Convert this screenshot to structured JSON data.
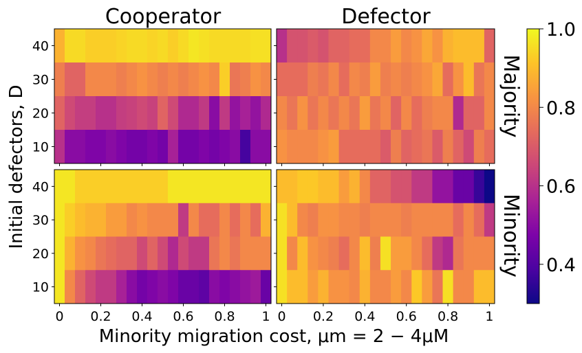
{
  "chart_data": {
    "type": "heatmap",
    "column_titles": [
      "Cooperator",
      "Defector"
    ],
    "row_titles": [
      "Majority",
      "Minority"
    ],
    "ylabel": "Initial defectors, D",
    "xlabel": "Minority migration cost, μm = 2 − 4μM",
    "xlim": [
      0,
      1
    ],
    "x_ticks": [
      "0",
      "0.2",
      "0.4",
      "0.6",
      "0.8",
      "1"
    ],
    "y_ticks": [
      "10",
      "20",
      "30",
      "40"
    ],
    "colormap": "plasma",
    "color_range": [
      0.3,
      1.0
    ],
    "colorbar_ticks": [
      "0.4",
      "0.6",
      "0.8",
      "1.0"
    ],
    "x_values": [
      0,
      0.05,
      0.1,
      0.15,
      0.2,
      0.25,
      0.3,
      0.35,
      0.4,
      0.45,
      0.5,
      0.55,
      0.6,
      0.65,
      0.7,
      0.75,
      0.8,
      0.85,
      0.9,
      0.95,
      1.0
    ],
    "y_values": [
      40,
      30,
      20,
      10
    ],
    "panels": [
      {
        "name": "Majority Cooperator",
        "z": [
          [
            0.88,
            0.95,
            0.95,
            0.93,
            0.93,
            0.93,
            0.94,
            0.95,
            0.95,
            0.94,
            0.95,
            0.93,
            0.95,
            0.97,
            0.96,
            0.95,
            0.95,
            0.95,
            0.95,
            0.96,
            0.96
          ],
          [
            0.78,
            0.72,
            0.72,
            0.8,
            0.8,
            0.8,
            0.78,
            0.8,
            0.82,
            0.8,
            0.78,
            0.8,
            0.78,
            0.8,
            0.82,
            0.8,
            0.93,
            0.76,
            0.78,
            0.82,
            0.8
          ],
          [
            0.72,
            0.66,
            0.63,
            0.63,
            0.6,
            0.6,
            0.63,
            0.64,
            0.66,
            0.64,
            0.72,
            0.66,
            0.58,
            0.58,
            0.62,
            0.5,
            0.62,
            0.52,
            0.56,
            0.52,
            0.58
          ],
          [
            0.6,
            0.5,
            0.5,
            0.48,
            0.48,
            0.5,
            0.48,
            0.46,
            0.46,
            0.48,
            0.46,
            0.56,
            0.46,
            0.46,
            0.48,
            0.46,
            0.48,
            0.5,
            0.38,
            0.5,
            0.5
          ]
        ]
      },
      {
        "name": "Majority Defector",
        "z": [
          [
            0.6,
            0.68,
            0.68,
            0.7,
            0.68,
            0.72,
            0.72,
            0.74,
            0.74,
            0.8,
            0.8,
            0.84,
            0.8,
            0.82,
            0.86,
            0.82,
            0.88,
            0.9,
            0.9,
            0.9,
            0.72
          ],
          [
            0.74,
            0.74,
            0.74,
            0.78,
            0.76,
            0.8,
            0.74,
            0.8,
            0.78,
            0.84,
            0.78,
            0.8,
            0.78,
            0.8,
            0.82,
            0.86,
            0.74,
            0.82,
            0.9,
            0.76,
            0.8
          ],
          [
            0.8,
            0.76,
            0.82,
            0.76,
            0.8,
            0.76,
            0.8,
            0.76,
            0.84,
            0.76,
            0.8,
            0.72,
            0.8,
            0.74,
            0.78,
            0.8,
            0.8,
            0.58,
            0.72,
            0.72,
            0.8
          ],
          [
            0.82,
            0.8,
            0.8,
            0.8,
            0.82,
            0.84,
            0.74,
            0.74,
            0.74,
            0.74,
            0.7,
            0.78,
            0.72,
            0.74,
            0.76,
            0.7,
            0.78,
            0.72,
            0.66,
            0.78,
            0.74
          ]
        ]
      },
      {
        "name": "Minority Cooperator",
        "z": [
          [
            0.97,
            0.97,
            0.93,
            0.93,
            0.93,
            0.93,
            0.93,
            0.93,
            0.93,
            0.93,
            0.93,
            0.97,
            0.97,
            0.97,
            0.97,
            0.97,
            0.97,
            0.97,
            0.97,
            0.97,
            0.97
          ],
          [
            0.97,
            0.93,
            0.9,
            0.88,
            0.88,
            0.84,
            0.84,
            0.8,
            0.82,
            0.8,
            0.8,
            0.8,
            0.62,
            0.8,
            0.74,
            0.74,
            0.8,
            0.74,
            0.8,
            0.74,
            0.88
          ],
          [
            0.97,
            0.88,
            0.82,
            0.8,
            0.76,
            0.74,
            0.72,
            0.72,
            0.66,
            0.72,
            0.66,
            0.58,
            0.66,
            0.62,
            0.62,
            0.76,
            0.8,
            0.76,
            0.8,
            0.8,
            0.8
          ],
          [
            0.97,
            0.8,
            0.72,
            0.66,
            0.62,
            0.62,
            0.56,
            0.5,
            0.46,
            0.48,
            0.5,
            0.48,
            0.44,
            0.44,
            0.42,
            0.5,
            0.48,
            0.5,
            0.52,
            0.54,
            0.44
          ]
        ]
      },
      {
        "name": "Minority Defector",
        "z": [
          [
            0.9,
            0.9,
            0.92,
            0.92,
            0.9,
            0.9,
            0.84,
            0.88,
            0.8,
            0.72,
            0.72,
            0.68,
            0.68,
            0.62,
            0.62,
            0.52,
            0.52,
            0.44,
            0.44,
            0.36,
            0.3
          ],
          [
            0.96,
            0.9,
            0.8,
            0.78,
            0.82,
            0.82,
            0.8,
            0.8,
            0.78,
            0.8,
            0.8,
            0.8,
            0.78,
            0.8,
            0.8,
            0.8,
            0.8,
            0.74,
            0.8,
            0.74,
            0.62
          ],
          [
            0.96,
            0.8,
            0.9,
            0.82,
            0.8,
            0.78,
            0.74,
            0.8,
            0.9,
            0.78,
            0.96,
            0.84,
            0.84,
            0.8,
            0.74,
            0.62,
            0.58,
            0.76,
            0.8,
            0.8,
            0.8
          ],
          [
            0.96,
            0.9,
            0.9,
            0.84,
            0.88,
            0.82,
            0.82,
            0.8,
            0.88,
            0.8,
            0.8,
            0.84,
            0.8,
            0.92,
            0.84,
            0.76,
            0.96,
            0.8,
            0.8,
            0.9,
            0.9
          ]
        ]
      }
    ]
  }
}
